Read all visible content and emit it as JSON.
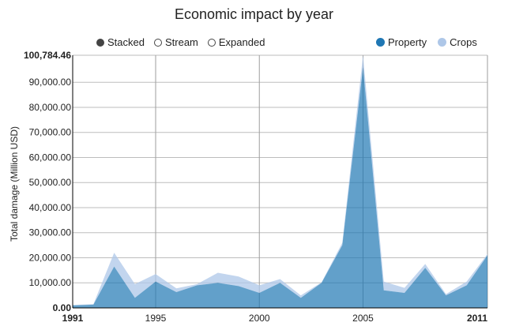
{
  "chart_data": {
    "type": "area",
    "title": "Economic impact by year",
    "xlabel": "",
    "ylabel": "Total damage (Million USD)",
    "x": [
      1991,
      1992,
      1993,
      1994,
      1995,
      1996,
      1997,
      1998,
      1999,
      2000,
      2001,
      2002,
      2003,
      2004,
      2005,
      2006,
      2007,
      2008,
      2009,
      2010,
      2011
    ],
    "series": [
      {
        "name": "Property",
        "color": "#1f77b4",
        "values": [
          1000,
          1300,
          16500,
          4000,
          10500,
          6300,
          9000,
          10000,
          8700,
          6000,
          10000,
          4000,
          10000,
          25000,
          96000,
          7000,
          6000,
          16000,
          5000,
          9000,
          21000
        ]
      },
      {
        "name": "Crops",
        "color": "#aec7e8",
        "values": [
          200,
          200,
          5500,
          5500,
          3000,
          1500,
          500,
          4000,
          3800,
          3000,
          1500,
          1000,
          200,
          1000,
          4784,
          3500,
          2000,
          1500,
          500,
          1500,
          500
        ]
      }
    ],
    "xticks": [
      "1991",
      "1995",
      "2000",
      "2005",
      "2011"
    ],
    "yticks": [
      "0.00",
      "10,000.00",
      "20,000.00",
      "30,000.00",
      "40,000.00",
      "50,000.00",
      "60,000.00",
      "70,000.00",
      "80,000.00",
      "90,000.00",
      "100,784.46"
    ],
    "ylim": [
      0,
      100784.46
    ],
    "xlim": [
      1991,
      2011
    ],
    "stacked": true,
    "grid": true,
    "legend_position": "top-right"
  },
  "controls": {
    "modes": [
      {
        "label": "Stacked",
        "active": true
      },
      {
        "label": "Stream",
        "active": false
      },
      {
        "label": "Expanded",
        "active": false
      }
    ]
  }
}
